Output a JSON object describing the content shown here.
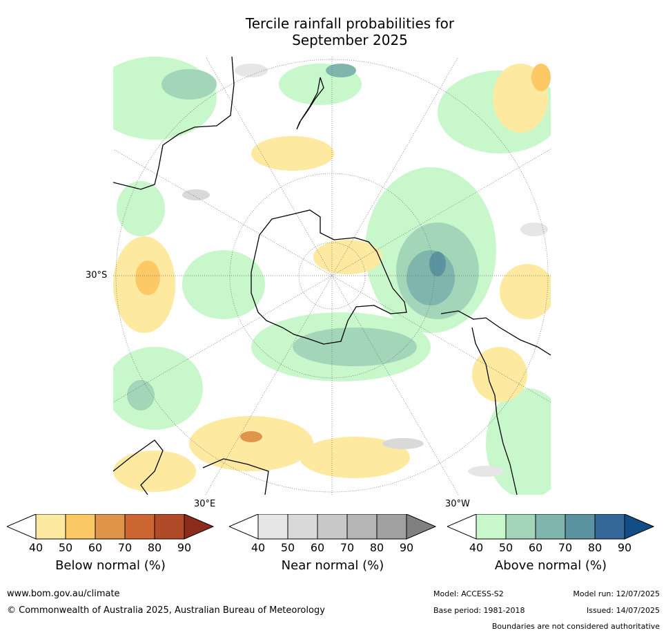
{
  "title_line1": "Tercile rainfall probabilities for",
  "title_line2": "September 2025",
  "map": {
    "lat_label": "30°S",
    "lon_label_east": "30°E",
    "lon_label_west": "30°W"
  },
  "colorbars": [
    {
      "label": "Below normal (%)",
      "ticks": [
        "40",
        "50",
        "60",
        "70",
        "80",
        "90"
      ],
      "colors": [
        "#ffffff",
        "#fdeaa0",
        "#fdc966",
        "#e0944a",
        "#cc6633",
        "#b04a28",
        "#8c2d1c"
      ]
    },
    {
      "label": "Near normal (%)",
      "ticks": [
        "40",
        "50",
        "60",
        "70",
        "80",
        "90"
      ],
      "colors": [
        "#ffffff",
        "#e6e6e6",
        "#d9d9d9",
        "#c8c8c8",
        "#b5b5b5",
        "#a0a0a0",
        "#808080"
      ]
    },
    {
      "label": "Above normal (%)",
      "ticks": [
        "40",
        "50",
        "60",
        "70",
        "80",
        "90"
      ],
      "colors": [
        "#ffffff",
        "#c8f7cc",
        "#a3d6b8",
        "#7fb5ad",
        "#5b93a0",
        "#35689a",
        "#134d85"
      ]
    }
  ],
  "footer": {
    "website": "www.bom.gov.au/climate",
    "copyright": "© Commonwealth of Australia 2025, Australian Bureau of Meteorology",
    "model": "Model: ACCESS-S2",
    "base_period": "Base period: 1981-2018",
    "model_run": "Model run: 12/07/2025",
    "issued": "Issued: 14/07/2025",
    "disclaimer": "Boundaries are not considered authoritative"
  }
}
